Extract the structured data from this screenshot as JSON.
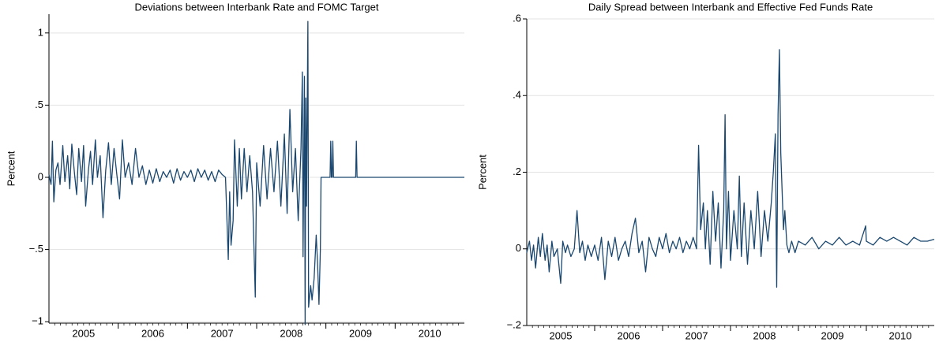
{
  "chart_data": [
    {
      "type": "line",
      "title": "Deviations between Interbank Rate and FOMC Target",
      "y_label": "Percent",
      "xlim": [
        2005,
        2011
      ],
      "ylim": [
        -1.01,
        1.13
      ],
      "xticks": [
        {
          "value": 2005.5,
          "label": "2005"
        },
        {
          "value": 2006.5,
          "label": "2006"
        },
        {
          "value": 2007.5,
          "label": "2007"
        },
        {
          "value": 2008.5,
          "label": "2008"
        },
        {
          "value": 2009.5,
          "label": "2009"
        },
        {
          "value": 2010.5,
          "label": "2010"
        }
      ],
      "x_boundary_ticks": [
        2006,
        2007,
        2008,
        2009,
        2010
      ],
      "yticks": [
        {
          "value": -1,
          "label": "−1"
        },
        {
          "value": -0.5,
          "label": "−.5"
        },
        0,
        {
          "value": 0.5,
          "label": ".5"
        },
        1
      ],
      "grid": true,
      "x": [
        2005.0,
        2005.03,
        2005.05,
        2005.07,
        2005.1,
        2005.13,
        2005.16,
        2005.2,
        2005.23,
        2005.27,
        2005.3,
        2005.33,
        2005.37,
        2005.4,
        2005.43,
        2005.47,
        2005.5,
        2005.53,
        2005.57,
        2005.6,
        2005.63,
        2005.67,
        2005.7,
        2005.74,
        2005.78,
        2005.82,
        2005.86,
        2005.9,
        2005.94,
        2005.98,
        2006.02,
        2006.06,
        2006.1,
        2006.15,
        2006.2,
        2006.25,
        2006.3,
        2006.35,
        2006.4,
        2006.45,
        2006.5,
        2006.55,
        2006.6,
        2006.65,
        2006.7,
        2006.75,
        2006.8,
        2006.85,
        2006.9,
        2006.95,
        2007.0,
        2007.05,
        2007.1,
        2007.15,
        2007.2,
        2007.25,
        2007.3,
        2007.35,
        2007.4,
        2007.45,
        2007.5,
        2007.55,
        2007.59,
        2007.61,
        2007.63,
        2007.66,
        2007.68,
        2007.72,
        2007.75,
        2007.78,
        2007.82,
        2007.86,
        2007.9,
        2007.94,
        2007.98,
        2008.0,
        2008.05,
        2008.1,
        2008.15,
        2008.2,
        2008.25,
        2008.3,
        2008.35,
        2008.4,
        2008.44,
        2008.48,
        2008.52,
        2008.56,
        2008.6,
        2008.64,
        2008.66,
        2008.67,
        2008.69,
        2008.7,
        2008.71,
        2008.72,
        2008.74,
        2008.75,
        2008.78,
        2008.8,
        2008.83,
        2008.86,
        2008.88,
        2008.9,
        2008.92,
        2008.93,
        2009.06,
        2009.07,
        2009.08,
        2009.09,
        2009.1,
        2009.11,
        2009.43,
        2009.44,
        2009.45,
        2011.0
      ],
      "series": [
        {
          "color": "#1a476f",
          "values": [
            0.02,
            -0.05,
            0.25,
            -0.17,
            0.05,
            0.1,
            -0.05,
            0.22,
            -0.03,
            0.15,
            -0.08,
            0.23,
            0.02,
            -0.12,
            0.2,
            -0.03,
            0.22,
            -0.2,
            0.05,
            0.18,
            -0.05,
            0.26,
            0.0,
            0.15,
            -0.28,
            0.05,
            0.24,
            -0.05,
            0.2,
            0.02,
            -0.15,
            0.26,
            0.0,
            0.1,
            -0.05,
            0.2,
            0.0,
            0.08,
            -0.05,
            0.05,
            -0.04,
            0.06,
            -0.03,
            0.04,
            0.0,
            0.05,
            -0.04,
            0.06,
            -0.02,
            0.04,
            0.0,
            0.05,
            -0.03,
            0.06,
            0.0,
            0.05,
            -0.02,
            0.04,
            -0.03,
            0.05,
            0.02,
            0.0,
            -0.57,
            -0.1,
            -0.47,
            -0.3,
            0.26,
            -0.2,
            0.2,
            -0.15,
            0.2,
            -0.1,
            0.15,
            -0.1,
            -0.83,
            0.1,
            -0.2,
            0.22,
            -0.15,
            0.2,
            -0.1,
            0.25,
            -0.2,
            0.3,
            -0.25,
            0.47,
            -0.1,
            0.2,
            -0.3,
            0.2,
            0.73,
            -0.55,
            0.7,
            -1.02,
            0.55,
            -0.2,
            1.08,
            -0.9,
            -0.75,
            -0.85,
            -0.7,
            -0.4,
            -0.6,
            -0.88,
            -0.5,
            0,
            0,
            0.25,
            0,
            0,
            0.25,
            0,
            0,
            0.25,
            0,
            0
          ]
        }
      ]
    },
    {
      "type": "line",
      "title": "Daily Spread between Interbank and Effective Fed Funds Rate",
      "y_label": "Percent",
      "xlim": [
        2005,
        2011
      ],
      "ylim": [
        -0.2,
        0.6
      ],
      "xticks": [
        {
          "value": 2005.5,
          "label": "2005"
        },
        {
          "value": 2006.5,
          "label": "2006"
        },
        {
          "value": 2007.5,
          "label": "2007"
        },
        {
          "value": 2008.5,
          "label": "2008"
        },
        {
          "value": 2009.5,
          "label": "2009"
        },
        {
          "value": 2010.5,
          "label": "2010"
        }
      ],
      "x_boundary_ticks": [
        2006,
        2007,
        2008,
        2009,
        2010
      ],
      "yticks": [
        {
          "value": -0.2,
          "label": "−.2"
        },
        0,
        {
          "value": 0.2,
          "label": ".2"
        },
        {
          "value": 0.4,
          "label": ".4"
        },
        {
          "value": 0.6,
          "label": ".6"
        }
      ],
      "grid": true,
      "x": [
        2005.0,
        2005.04,
        2005.07,
        2005.1,
        2005.13,
        2005.17,
        2005.2,
        2005.23,
        2005.27,
        2005.3,
        2005.33,
        2005.37,
        2005.4,
        2005.45,
        2005.5,
        2005.53,
        2005.57,
        2005.6,
        2005.65,
        2005.7,
        2005.74,
        2005.78,
        2005.82,
        2005.86,
        2005.9,
        2005.95,
        2006.0,
        2006.05,
        2006.1,
        2006.15,
        2006.2,
        2006.25,
        2006.3,
        2006.35,
        2006.4,
        2006.45,
        2006.5,
        2006.55,
        2006.6,
        2006.65,
        2006.7,
        2006.75,
        2006.8,
        2006.85,
        2006.9,
        2006.95,
        2007.0,
        2007.05,
        2007.1,
        2007.15,
        2007.2,
        2007.25,
        2007.3,
        2007.35,
        2007.4,
        2007.45,
        2007.5,
        2007.53,
        2007.56,
        2007.6,
        2007.63,
        2007.66,
        2007.7,
        2007.74,
        2007.78,
        2007.82,
        2007.86,
        2007.9,
        2007.92,
        2007.94,
        2007.97,
        2008.0,
        2008.05,
        2008.1,
        2008.13,
        2008.16,
        2008.2,
        2008.25,
        2008.3,
        2008.35,
        2008.4,
        2008.45,
        2008.5,
        2008.55,
        2008.6,
        2008.63,
        2008.66,
        2008.68,
        2008.7,
        2008.72,
        2008.74,
        2008.76,
        2008.78,
        2008.8,
        2008.83,
        2008.86,
        2008.9,
        2008.95,
        2009.0,
        2009.1,
        2009.2,
        2009.3,
        2009.4,
        2009.5,
        2009.6,
        2009.7,
        2009.8,
        2009.9,
        2009.99,
        2010.0,
        2010.1,
        2010.2,
        2010.3,
        2010.4,
        2010.5,
        2010.6,
        2010.7,
        2010.8,
        2010.9,
        2011.0
      ],
      "series": [
        {
          "color": "#1a476f",
          "values": [
            -0.01,
            0.02,
            -0.03,
            0.01,
            -0.05,
            0.03,
            -0.02,
            0.04,
            -0.03,
            0.01,
            -0.06,
            0.02,
            -0.02,
            0.0,
            -0.09,
            0.02,
            -0.01,
            0.01,
            -0.02,
            0.0,
            0.1,
            -0.01,
            0.02,
            -0.03,
            0.01,
            -0.02,
            0.01,
            -0.03,
            0.03,
            -0.08,
            0.02,
            -0.02,
            0.03,
            -0.03,
            0.0,
            0.02,
            -0.02,
            0.04,
            0.08,
            -0.01,
            0.02,
            -0.06,
            0.03,
            0.0,
            -0.02,
            0.03,
            0.0,
            0.04,
            -0.01,
            0.02,
            0.0,
            0.03,
            -0.01,
            0.02,
            0.0,
            0.03,
            0.0,
            0.27,
            0.05,
            0.12,
            0.0,
            0.1,
            -0.04,
            0.15,
            0.02,
            0.12,
            -0.05,
            0.1,
            0.35,
            0.0,
            0.15,
            -0.03,
            0.1,
            0.0,
            0.19,
            -0.02,
            0.12,
            -0.04,
            0.1,
            0.0,
            0.15,
            -0.02,
            0.1,
            0.02,
            0.12,
            0.2,
            0.3,
            -0.1,
            0.35,
            0.52,
            0.25,
            0.15,
            0.05,
            0.1,
            0.01,
            -0.01,
            0.02,
            -0.01,
            0.02,
            0.01,
            0.03,
            0.0,
            0.02,
            0.01,
            0.03,
            0.01,
            0.02,
            0.01,
            0.06,
            0.02,
            0.01,
            0.03,
            0.02,
            0.03,
            0.02,
            0.01,
            0.03,
            0.02,
            0.02,
            0.025
          ]
        }
      ]
    }
  ]
}
